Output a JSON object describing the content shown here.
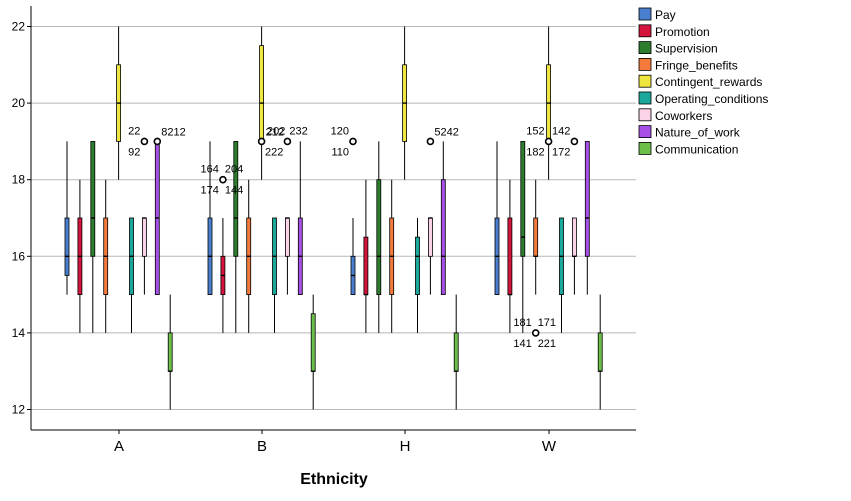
{
  "chart_data": {
    "type": "boxplot",
    "title": "",
    "xlabel": "Ethnicity",
    "ylabel": "",
    "ylim": [
      11.5,
      22.6
    ],
    "yticks": [
      12,
      14,
      16,
      18,
      20,
      22
    ],
    "grid": true,
    "legend_position": "top-right",
    "categories": [
      "A",
      "B",
      "H",
      "W"
    ],
    "series": [
      {
        "name": "Pay",
        "color": "#4a7fcf",
        "boxes": [
          {
            "whislo": 15,
            "q1": 15.5,
            "med": 16,
            "q3": 17,
            "whishi": 19
          },
          {
            "whislo": 15,
            "q1": 15,
            "med": 16,
            "q3": 17,
            "whishi": 19
          },
          {
            "whislo": 15,
            "q1": 15,
            "med": 15.5,
            "q3": 16,
            "whishi": 17
          },
          {
            "whislo": 15,
            "q1": 15,
            "med": 16,
            "q3": 17,
            "whishi": 19
          }
        ]
      },
      {
        "name": "Promotion",
        "color": "#d4143c",
        "boxes": [
          {
            "whislo": 14,
            "q1": 15,
            "med": 16,
            "q3": 17,
            "whishi": 18
          },
          {
            "whislo": 14,
            "q1": 15,
            "med": 15.5,
            "q3": 16,
            "whishi": 17
          },
          {
            "whislo": 14,
            "q1": 15,
            "med": 15,
            "q3": 16.5,
            "whishi": 18
          },
          {
            "whislo": 14,
            "q1": 15,
            "med": 15,
            "q3": 17,
            "whishi": 18
          }
        ]
      },
      {
        "name": "Supervision",
        "color": "#2e7d2e",
        "boxes": [
          {
            "whislo": 14,
            "q1": 16,
            "med": 17,
            "q3": 19,
            "whishi": 19
          },
          {
            "whislo": 14,
            "q1": 16,
            "med": 17,
            "q3": 19,
            "whishi": 19
          },
          {
            "whislo": 14,
            "q1": 15,
            "med": 16,
            "q3": 18,
            "whishi": 19
          },
          {
            "whislo": 14,
            "q1": 16,
            "med": 16.5,
            "q3": 19,
            "whishi": 19
          }
        ]
      },
      {
        "name": "Fringe_benefits",
        "color": "#f47a3c",
        "boxes": [
          {
            "whislo": 14,
            "q1": 15,
            "med": 16,
            "q3": 17,
            "whishi": 18
          },
          {
            "whislo": 14,
            "q1": 15,
            "med": 16,
            "q3": 17,
            "whishi": 18
          },
          {
            "whislo": 14,
            "q1": 15,
            "med": 16,
            "q3": 17,
            "whishi": 18
          },
          {
            "whislo": 15,
            "q1": 16,
            "med": 16,
            "q3": 17,
            "whishi": 18
          }
        ]
      },
      {
        "name": "Contingent_rewards",
        "color": "#f0e640",
        "boxes": [
          {
            "whislo": 18,
            "q1": 19,
            "med": 20,
            "q3": 21,
            "whishi": 22
          },
          {
            "whislo": 18,
            "q1": 19,
            "med": 20,
            "q3": 21.5,
            "whishi": 22
          },
          {
            "whislo": 18,
            "q1": 19,
            "med": 20,
            "q3": 21,
            "whishi": 22
          },
          {
            "whislo": 18,
            "q1": 19,
            "med": 20,
            "q3": 21,
            "whishi": 22
          }
        ]
      },
      {
        "name": "Operating_conditions",
        "color": "#1aa89a",
        "boxes": [
          {
            "whislo": 14,
            "q1": 15,
            "med": 16,
            "q3": 17,
            "whishi": 17
          },
          {
            "whislo": 14,
            "q1": 15,
            "med": 16,
            "q3": 17,
            "whishi": 17
          },
          {
            "whislo": 14,
            "q1": 15,
            "med": 16,
            "q3": 16.5,
            "whishi": 17
          },
          {
            "whislo": 14,
            "q1": 15,
            "med": 16,
            "q3": 17,
            "whishi": 17
          }
        ]
      },
      {
        "name": "Coworkers",
        "color": "#fbd3e8",
        "boxes": [
          {
            "whislo": 15,
            "q1": 16,
            "med": 17,
            "q3": 17,
            "whishi": 17
          },
          {
            "whislo": 15,
            "q1": 16,
            "med": 17,
            "q3": 17,
            "whishi": 17
          },
          {
            "whislo": 15,
            "q1": 16,
            "med": 17,
            "q3": 17,
            "whishi": 17
          },
          {
            "whislo": 15,
            "q1": 16,
            "med": 16,
            "q3": 17,
            "whishi": 17
          }
        ]
      },
      {
        "name": "Nature_of_work",
        "color": "#a650e8",
        "boxes": [
          {
            "whislo": 15,
            "q1": 15,
            "med": 17,
            "q3": 19,
            "whishi": 19
          },
          {
            "whislo": 15,
            "q1": 15,
            "med": 16,
            "q3": 17,
            "whishi": 19
          },
          {
            "whislo": 15,
            "q1": 15,
            "med": 16,
            "q3": 18,
            "whishi": 19
          },
          {
            "whislo": 15,
            "q1": 16,
            "med": 17,
            "q3": 19,
            "whishi": 19
          }
        ]
      },
      {
        "name": "Communication",
        "color": "#6cc04a",
        "boxes": [
          {
            "whislo": 12,
            "q1": 13,
            "med": 13,
            "q3": 14,
            "whishi": 15
          },
          {
            "whislo": 12,
            "q1": 13,
            "med": 13,
            "q3": 14.5,
            "whishi": 15
          },
          {
            "whislo": 12,
            "q1": 13,
            "med": 13,
            "q3": 14,
            "whishi": 15
          },
          {
            "whislo": 12,
            "q1": 13,
            "med": 13,
            "q3": 14,
            "whishi": 15
          }
        ]
      }
    ],
    "outliers": [
      {
        "category": "A",
        "series": "Coworkers",
        "y": 19,
        "labels": [
          "22",
          "92"
        ]
      },
      {
        "category": "A",
        "series": "Nature_of_work",
        "y": 19,
        "labels": [
          "8212"
        ]
      },
      {
        "category": "B",
        "series": "Promotion",
        "y": 18,
        "labels": [
          "164",
          "204",
          "174",
          "144"
        ]
      },
      {
        "category": "B",
        "series": "Contingent_rewards",
        "y": 19,
        "labels": [
          "212"
        ]
      },
      {
        "category": "B",
        "series": "Coworkers",
        "y": 19,
        "labels": [
          "202",
          "232",
          "222"
        ]
      },
      {
        "category": "H",
        "series": "Pay",
        "y": 19,
        "labels": [
          "120",
          "110"
        ]
      },
      {
        "category": "H",
        "series": "Coworkers",
        "y": 19,
        "labels": [
          "5242"
        ]
      },
      {
        "category": "W",
        "series": "Fringe_benefits",
        "y": 14,
        "labels": [
          "181",
          "171",
          "141",
          "221"
        ]
      },
      {
        "category": "W",
        "series": "Contingent_rewards",
        "y": 19,
        "labels": [
          "152",
          "182"
        ]
      },
      {
        "category": "W",
        "series": "Coworkers",
        "y": 19,
        "labels": [
          "142",
          "172"
        ]
      }
    ]
  }
}
